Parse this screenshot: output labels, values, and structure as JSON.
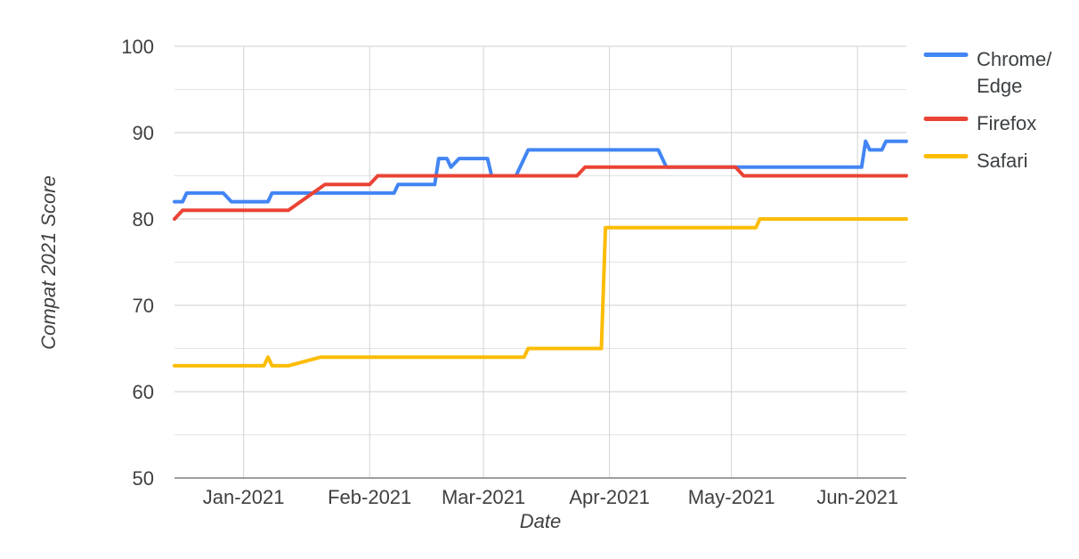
{
  "chart_data": {
    "type": "line",
    "title": "",
    "xlabel": "Date",
    "ylabel": "Compat 2021 Score",
    "ylim": [
      50,
      100
    ],
    "y_major_ticks": [
      50,
      60,
      70,
      80,
      90,
      100
    ],
    "y_minor_ticks": [
      55,
      65,
      75,
      85,
      95
    ],
    "grid": true,
    "legend_position": "right",
    "x_domain": [
      "2020-12-15",
      "2021-06-13"
    ],
    "x_ticks": [
      {
        "date": "2021-01-01",
        "label": "Jan-2021"
      },
      {
        "date": "2021-02-01",
        "label": "Feb-2021"
      },
      {
        "date": "2021-03-01",
        "label": "Mar-2021"
      },
      {
        "date": "2021-04-01",
        "label": "Apr-2021"
      },
      {
        "date": "2021-05-01",
        "label": "May-2021"
      },
      {
        "date": "2021-06-01",
        "label": "Jun-2021"
      }
    ],
    "series": [
      {
        "name": "Chrome/Edge",
        "legend_lines": [
          "Chrome/",
          "Edge"
        ],
        "color": "#4285F4",
        "points": [
          [
            "2020-12-15",
            82
          ],
          [
            "2020-12-17",
            82
          ],
          [
            "2020-12-18",
            83
          ],
          [
            "2020-12-27",
            83
          ],
          [
            "2020-12-29",
            82
          ],
          [
            "2021-01-07",
            82
          ],
          [
            "2021-01-08",
            83
          ],
          [
            "2021-02-07",
            83
          ],
          [
            "2021-02-08",
            84
          ],
          [
            "2021-02-17",
            84
          ],
          [
            "2021-02-18",
            87
          ],
          [
            "2021-02-20",
            87
          ],
          [
            "2021-02-21",
            86
          ],
          [
            "2021-02-23",
            87
          ],
          [
            "2021-03-02",
            87
          ],
          [
            "2021-03-03",
            85
          ],
          [
            "2021-03-09",
            85
          ],
          [
            "2021-03-12",
            88
          ],
          [
            "2021-04-13",
            88
          ],
          [
            "2021-04-15",
            86
          ],
          [
            "2021-06-02",
            86
          ],
          [
            "2021-06-03",
            89
          ],
          [
            "2021-06-04",
            88
          ],
          [
            "2021-06-07",
            88
          ],
          [
            "2021-06-08",
            89
          ],
          [
            "2021-06-13",
            89
          ]
        ]
      },
      {
        "name": "Firefox",
        "legend_lines": [
          "Firefox"
        ],
        "color": "#EA4335",
        "points": [
          [
            "2020-12-15",
            80
          ],
          [
            "2020-12-17",
            81
          ],
          [
            "2021-01-12",
            81
          ],
          [
            "2021-01-21",
            84
          ],
          [
            "2021-02-01",
            84
          ],
          [
            "2021-02-03",
            85
          ],
          [
            "2021-03-24",
            85
          ],
          [
            "2021-03-26",
            86
          ],
          [
            "2021-05-02",
            86
          ],
          [
            "2021-05-04",
            85
          ],
          [
            "2021-06-13",
            85
          ]
        ]
      },
      {
        "name": "Safari",
        "legend_lines": [
          "Safari"
        ],
        "color": "#FBBC04",
        "points": [
          [
            "2020-12-15",
            63
          ],
          [
            "2021-01-06",
            63
          ],
          [
            "2021-01-07",
            64
          ],
          [
            "2021-01-08",
            63
          ],
          [
            "2021-01-12",
            63
          ],
          [
            "2021-01-20",
            64
          ],
          [
            "2021-03-11",
            64
          ],
          [
            "2021-03-12",
            65
          ],
          [
            "2021-03-30",
            65
          ],
          [
            "2021-03-31",
            79
          ],
          [
            "2021-05-07",
            79
          ],
          [
            "2021-05-08",
            80
          ],
          [
            "2021-06-13",
            80
          ]
        ]
      }
    ]
  },
  "style_colors": {
    "major_grid": "#cfcfcf",
    "minor_grid": "#e4e4e4",
    "vertical_grid": "#d2d2d2",
    "axis_line": "#9e9e9e"
  }
}
